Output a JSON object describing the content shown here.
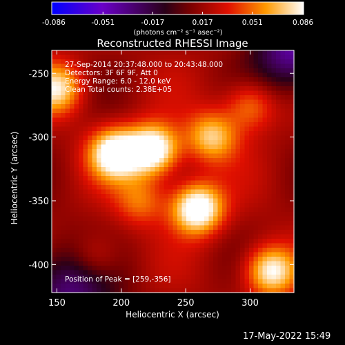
{
  "chart_data": {
    "type": "heatmap",
    "title": "Reconstructed RHESSI Image",
    "xlabel": "Heliocentric X (arcsec)",
    "ylabel": "Heliocentric Y (arcsec)",
    "xlim": [
      146,
      334
    ],
    "ylim": [
      -422,
      -232
    ],
    "x_ticks": [
      150,
      200,
      250,
      300
    ],
    "y_ticks": [
      -250,
      -300,
      -350,
      -400
    ],
    "info_lines": [
      "27-Sep-2014 20:37:48.000 to 20:43:48.000",
      "Detectors: 3F 6F 9F, Att 0",
      "Energy Range: 6.0 - 12.0 keV",
      "Clean    Total counts: 2.38E+05"
    ],
    "peak_label": "Position of Peak = [259,-356]",
    "peak": [
      259,
      -356
    ],
    "colorbar": {
      "min": -0.086,
      "max": 0.086,
      "ticks": [
        "-0.086",
        "-0.051",
        "-0.017",
        "0.017",
        "0.051",
        "0.086"
      ],
      "unit_label": "(photons cm⁻² s⁻¹ asec⁻²)"
    },
    "emission_sources": [
      {
        "x": 225,
        "y": -310,
        "intensity": 0.085
      },
      {
        "x": 195,
        "y": -313,
        "intensity": 0.08
      },
      {
        "x": 259,
        "y": -356,
        "intensity": 0.086
      },
      {
        "x": 316,
        "y": -405,
        "intensity": 0.07
      },
      {
        "x": 270,
        "y": -300,
        "intensity": 0.055
      },
      {
        "x": 150,
        "y": -262,
        "intensity": 0.06
      },
      {
        "x": 300,
        "y": -275,
        "intensity": 0.04
      },
      {
        "x": 215,
        "y": -350,
        "intensity": 0.035
      },
      {
        "x": 180,
        "y": -395,
        "intensity": 0.03
      }
    ],
    "grid": false,
    "colormap": "rainbow"
  },
  "timestamp": "17-May-2022 15:49"
}
